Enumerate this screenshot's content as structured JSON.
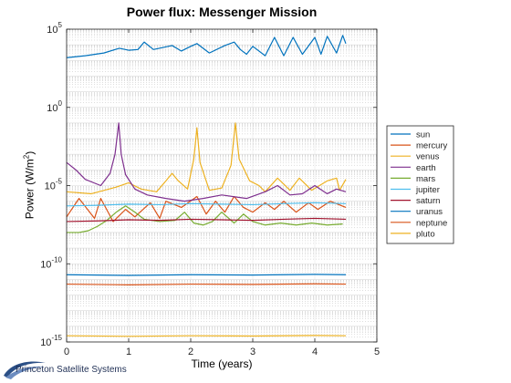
{
  "chart_data": {
    "type": "line",
    "title": "Power flux: Messenger Mission",
    "xlabel": "Time (years)",
    "ylabel_prefix": "Power (W/m",
    "ylabel_sup": "2",
    "ylabel_suffix": ")",
    "y_scale": "log",
    "xlim": [
      0,
      5
    ],
    "ylim": [
      1e-15,
      100000.0
    ],
    "xticks": [
      0,
      1,
      2,
      3,
      4,
      5
    ],
    "xtick_labels": [
      "0",
      "1",
      "2",
      "3",
      "4",
      "5"
    ],
    "yticks": [
      1e-15,
      1e-10,
      1e-05,
      1,
      100000.0
    ],
    "ytick_labels": [
      {
        "base": "10",
        "exp": "-15"
      },
      {
        "base": "10",
        "exp": "-10"
      },
      {
        "base": "10",
        "exp": "-5"
      },
      {
        "base": "10",
        "exp": "0"
      },
      {
        "base": "10",
        "exp": "5"
      }
    ],
    "grid": true,
    "legend_location": "outside right",
    "series": [
      {
        "name": "sun",
        "color": "#0072BD",
        "x": [
          0,
          0.3,
          0.6,
          0.85,
          1.0,
          1.15,
          1.25,
          1.4,
          1.7,
          1.85,
          2.0,
          2.1,
          2.3,
          2.55,
          2.7,
          2.8,
          2.9,
          3.0,
          3.2,
          3.35,
          3.5,
          3.65,
          3.8,
          4.0,
          4.1,
          4.2,
          4.35,
          4.45,
          4.5
        ],
        "y": [
          1500,
          2000,
          3000,
          6000,
          4500,
          5000,
          15000,
          5000,
          9000,
          4000,
          8000,
          12000,
          3000,
          9000,
          15000,
          5000,
          2500,
          8000,
          2000,
          30000,
          2000,
          30000,
          2500,
          30000,
          2500,
          35000,
          3000,
          40000,
          12000
        ]
      },
      {
        "name": "mercury",
        "color": "#D95319",
        "x": [
          0,
          0.2,
          0.45,
          0.55,
          0.75,
          0.95,
          1.1,
          1.35,
          1.5,
          1.6,
          1.85,
          2.1,
          2.25,
          2.4,
          2.55,
          2.7,
          2.85,
          3.0,
          3.2,
          3.35,
          3.5,
          3.7,
          3.9,
          4.05,
          4.25,
          4.5
        ],
        "y": [
          1e-07,
          1.5e-06,
          8e-08,
          1.5e-06,
          5e-08,
          3e-07,
          1e-07,
          8e-07,
          8e-08,
          1e-06,
          4e-07,
          2e-06,
          1.5e-07,
          1e-06,
          2e-07,
          2e-06,
          4e-07,
          2e-07,
          8e-07,
          3e-07,
          1e-06,
          2e-07,
          8e-07,
          3e-07,
          1e-06,
          4e-07
        ]
      },
      {
        "name": "venus",
        "color": "#EDB120",
        "x": [
          0,
          0.4,
          0.8,
          1.0,
          1.2,
          1.45,
          1.6,
          1.7,
          1.8,
          1.95,
          2.05,
          2.1,
          2.15,
          2.3,
          2.5,
          2.65,
          2.72,
          2.78,
          2.95,
          3.1,
          3.2,
          3.4,
          3.6,
          3.75,
          3.95,
          4.2,
          4.35,
          4.4,
          4.5
        ],
        "y": [
          4e-06,
          3e-06,
          8e-06,
          1.5e-05,
          6e-06,
          4e-06,
          2e-05,
          6e-05,
          2e-05,
          6e-06,
          0.0005,
          0.05,
          0.0003,
          5e-06,
          7e-06,
          0.0002,
          0.1,
          0.0005,
          2e-05,
          1e-05,
          4e-06,
          3e-05,
          5e-06,
          3e-05,
          5e-06,
          2e-05,
          3e-05,
          5e-06,
          2.5e-05
        ]
      },
      {
        "name": "earth",
        "color": "#7E2F8E",
        "x": [
          0,
          0.15,
          0.3,
          0.55,
          0.7,
          0.78,
          0.84,
          0.88,
          0.95,
          1.1,
          1.3,
          1.6,
          1.9,
          2.2,
          2.5,
          2.9,
          3.2,
          3.4,
          3.6,
          3.8,
          4.0,
          4.2,
          4.35,
          4.5
        ],
        "y": [
          0.0003,
          0.0001,
          2.5e-05,
          1e-05,
          6e-05,
          0.001,
          0.1,
          0.001,
          5e-05,
          6e-06,
          2.5e-06,
          1.5e-06,
          1e-06,
          1.5e-06,
          2.5e-06,
          1.5e-06,
          4e-06,
          1e-05,
          2.5e-06,
          3e-06,
          1e-05,
          3e-06,
          6e-06,
          4e-06
        ]
      },
      {
        "name": "mars",
        "color": "#77AC30",
        "x": [
          0,
          0.2,
          0.35,
          0.5,
          0.65,
          0.8,
          0.95,
          1.1,
          1.25,
          1.5,
          1.75,
          1.9,
          2.05,
          2.2,
          2.35,
          2.5,
          2.7,
          2.85,
          3.0,
          3.2,
          3.45,
          3.7,
          3.95,
          4.2,
          4.45
        ],
        "y": [
          1e-08,
          1e-08,
          1.3e-08,
          2.5e-08,
          6e-08,
          2e-07,
          5e-07,
          2e-07,
          7e-08,
          5e-08,
          6e-08,
          2e-07,
          4e-08,
          3e-08,
          5e-08,
          2e-07,
          4e-08,
          1.5e-07,
          5e-08,
          3e-08,
          4e-08,
          3e-08,
          4e-08,
          3e-08,
          3.5e-08
        ]
      },
      {
        "name": "jupiter",
        "color": "#4DBEEE",
        "x": [
          0,
          0.5,
          1.0,
          1.5,
          2.0,
          2.5,
          3.0,
          3.5,
          4.0,
          4.5
        ],
        "y": [
          5e-07,
          5.5e-07,
          6.5e-07,
          6e-07,
          7e-07,
          6.5e-07,
          6e-07,
          7e-07,
          8e-07,
          7e-07
        ]
      },
      {
        "name": "saturn",
        "color": "#A2142F",
        "x": [
          0,
          0.5,
          1.0,
          1.5,
          2.0,
          2.5,
          3.0,
          3.5,
          4.0,
          4.5
        ],
        "y": [
          5e-08,
          5.5e-08,
          6.5e-08,
          6e-08,
          7e-08,
          6.5e-08,
          6e-08,
          7e-08,
          8e-08,
          7e-08
        ]
      },
      {
        "name": "uranus",
        "color": "#0072BD",
        "x": [
          0,
          1.0,
          2.0,
          3.0,
          4.0,
          4.5
        ],
        "y": [
          2e-11,
          1.8e-11,
          2e-11,
          1.9e-11,
          2.1e-11,
          2e-11
        ]
      },
      {
        "name": "neptune",
        "color": "#D95319",
        "x": [
          0,
          1.0,
          2.0,
          3.0,
          4.0,
          4.5
        ],
        "y": [
          5e-12,
          4.5e-12,
          5e-12,
          4.8e-12,
          5.2e-12,
          5e-12
        ]
      },
      {
        "name": "pluto",
        "color": "#EDB120",
        "x": [
          0,
          1.0,
          2.0,
          3.0,
          4.0,
          4.5
        ],
        "y": [
          2.5e-15,
          2.3e-15,
          2.5e-15,
          2.4e-15,
          2.6e-15,
          2.5e-15
        ]
      }
    ]
  },
  "branding": {
    "logo_text": "Princeton Satellite Systems",
    "logo_color": "#1f2f55"
  }
}
